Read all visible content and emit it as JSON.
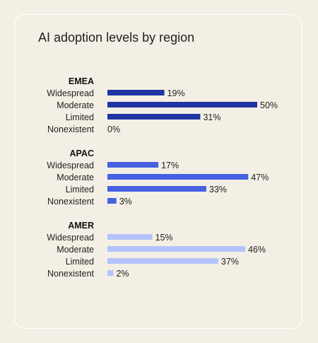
{
  "title": "AI adoption levels by region",
  "chart_data": {
    "type": "bar",
    "orientation": "horizontal",
    "title": "AI adoption levels by region",
    "categories": [
      "Widespread",
      "Moderate",
      "Limited",
      "Nonexistent"
    ],
    "value_suffix": "%",
    "xlim": [
      0,
      50
    ],
    "grid": false,
    "groups": [
      {
        "name": "EMEA",
        "color": "#1e35a3",
        "values": [
          19,
          50,
          31,
          0
        ]
      },
      {
        "name": "APAC",
        "color": "#4660e3",
        "values": [
          17,
          47,
          33,
          3
        ]
      },
      {
        "name": "AMER",
        "color": "#b4c3fb",
        "values": [
          15,
          46,
          37,
          2
        ]
      }
    ]
  }
}
